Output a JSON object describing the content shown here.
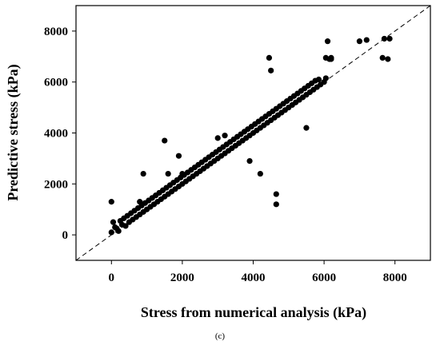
{
  "chart_data": {
    "type": "scatter",
    "panel_label": "(c)",
    "xlabel": "Stress from numerical analysis (kPa)",
    "ylabel": "Predictive stress (kPa)",
    "xlim": [
      -1000,
      9000
    ],
    "ylim": [
      -1000,
      9000
    ],
    "xticks": [
      0,
      2000,
      4000,
      6000,
      8000
    ],
    "yticks": [
      0,
      2000,
      4000,
      6000,
      8000
    ],
    "xtick_labels": [
      "0",
      "2000",
      "4000",
      "6000",
      "8000"
    ],
    "ytick_labels": [
      "0",
      "2000",
      "4000",
      "6000",
      "8000"
    ],
    "reference_line": {
      "style": "dashed",
      "from": [
        -1000,
        -1000
      ],
      "to": [
        9000,
        9000
      ]
    },
    "grid": false,
    "legend": "none",
    "marker_color": "#000000",
    "series": [
      {
        "x": [
          0,
          100,
          200,
          50,
          150,
          300,
          250,
          400,
          350,
          500,
          450,
          600,
          550,
          700,
          650,
          800,
          750,
          900,
          850,
          1000,
          950,
          1100,
          1050,
          1200,
          1150,
          1300,
          1250,
          1400,
          1350,
          1500,
          1450,
          1600,
          1550,
          1700,
          1650,
          1800,
          1750,
          1900,
          1850,
          2000,
          1950,
          2100,
          2050,
          2200,
          2150,
          2300,
          2250,
          2400,
          2350,
          2500,
          2450,
          2600,
          2550,
          2700,
          2650,
          2800,
          2750,
          2900,
          2850,
          3000,
          2950,
          3100,
          3050,
          3200,
          3150,
          3300,
          3250,
          3400,
          3350,
          3500,
          3450,
          3600,
          3550,
          3700,
          3650,
          3800,
          3750,
          3900,
          3850,
          4000,
          3950,
          4100,
          4050,
          4200,
          4150,
          4300,
          4250,
          4400,
          4350,
          4500,
          4450,
          4600,
          4550,
          4700,
          4650,
          4800,
          4750,
          4900,
          4850,
          5000,
          4950,
          5100,
          5050,
          5200,
          5150,
          5300,
          5250,
          5400,
          5350,
          5500,
          5450,
          5600,
          5550,
          5700,
          5650,
          5800,
          5750,
          5900,
          5850,
          6000,
          6050,
          6100,
          6150,
          6200,
          7000,
          7200,
          7700,
          7800,
          7850,
          7650,
          4450,
          4650,
          4650,
          6050,
          6200,
          4500,
          1500,
          1600,
          1900,
          2000,
          800,
          900,
          0,
          3000,
          3200,
          5500,
          4200,
          3900
        ],
        "y": [
          100,
          300,
          150,
          500,
          250,
          400,
          550,
          350,
          650,
          500,
          750,
          600,
          850,
          700,
          950,
          800,
          1050,
          900,
          1150,
          1000,
          1250,
          1100,
          1350,
          1200,
          1450,
          1300,
          1550,
          1400,
          1650,
          1500,
          1750,
          1600,
          1850,
          1700,
          1950,
          1800,
          2050,
          1900,
          2150,
          2000,
          2250,
          2100,
          2350,
          2200,
          2450,
          2300,
          2550,
          2400,
          2650,
          2500,
          2750,
          2600,
          2850,
          2700,
          2950,
          2800,
          3050,
          2900,
          3150,
          3000,
          3250,
          3100,
          3350,
          3200,
          3450,
          3300,
          3550,
          3400,
          3650,
          3500,
          3750,
          3600,
          3850,
          3700,
          3950,
          3800,
          4050,
          3900,
          4150,
          4000,
          4250,
          4100,
          4350,
          4200,
          4450,
          4300,
          4550,
          4400,
          4650,
          4500,
          4750,
          4600,
          4850,
          4700,
          4950,
          4800,
          5050,
          4900,
          5150,
          5000,
          5250,
          5100,
          5350,
          5200,
          5450,
          5300,
          5550,
          5400,
          5650,
          5500,
          5750,
          5600,
          5850,
          5700,
          5950,
          5800,
          6050,
          5900,
          6100,
          6000,
          6150,
          7600,
          6900,
          6950,
          7600,
          7650,
          7700,
          6900,
          7700,
          6950,
          6950,
          1600,
          1200,
          6950,
          6900,
          6450,
          3700,
          2400,
          3100,
          2400,
          1300,
          2400,
          1300,
          3800,
          3900,
          4200,
          2400,
          2900
        ]
      }
    ]
  }
}
